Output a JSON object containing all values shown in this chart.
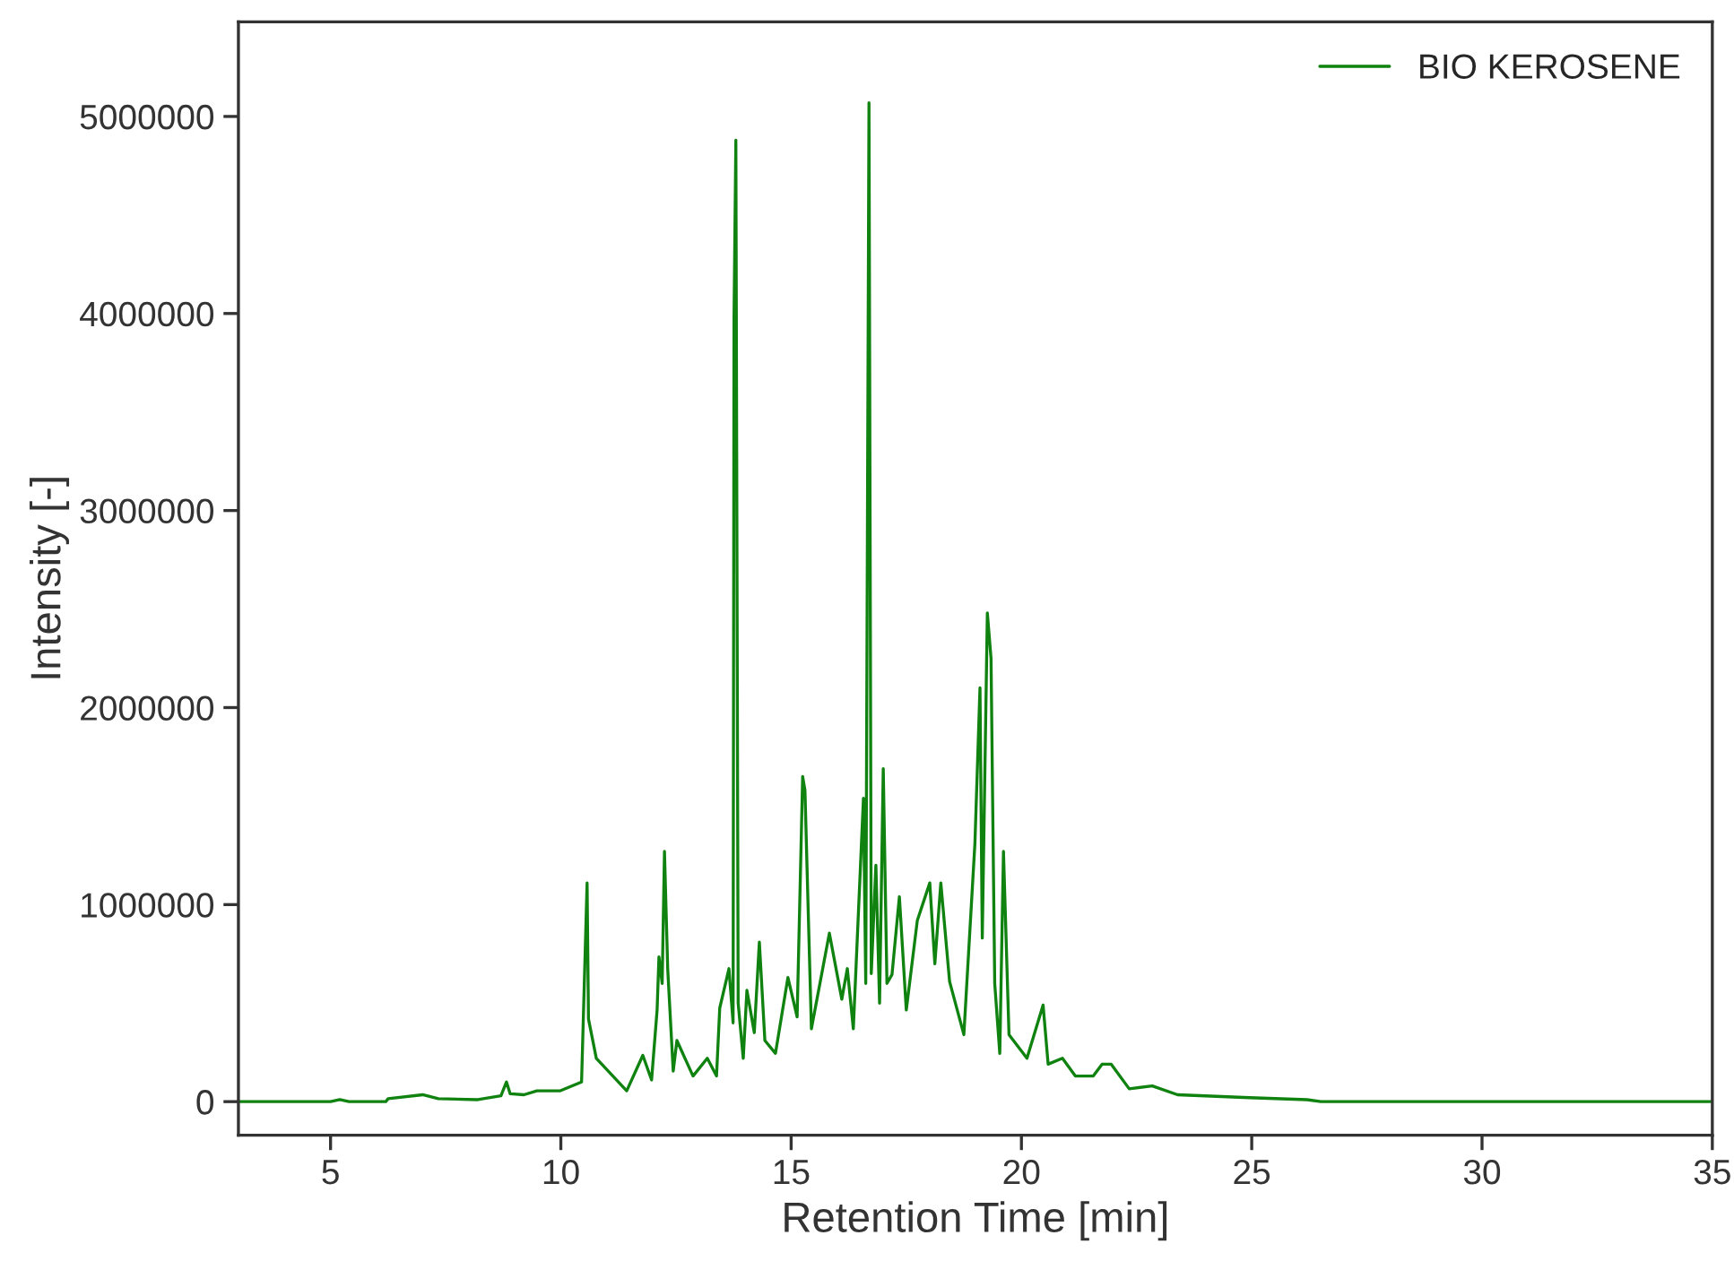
{
  "chart_data": {
    "type": "line",
    "xlabel": "Retention Time [min]",
    "ylabel": "Intensity [-]",
    "xlim": [
      3,
      35
    ],
    "ylim": [
      -170000,
      5480000
    ],
    "xticks": [
      5,
      10,
      15,
      20,
      25,
      30,
      35
    ],
    "yticks": [
      0,
      1000000,
      2000000,
      3000000,
      4000000,
      5000000
    ],
    "grid": false,
    "legend": "top right",
    "marker": "none",
    "line_style": "solid",
    "x": [
      3.0,
      5.0,
      5.2,
      5.4,
      6.2,
      6.25,
      7.0,
      7.34,
      8.2,
      8.7,
      8.82,
      8.9,
      9.2,
      9.48,
      9.99,
      10.45,
      10.57,
      10.6,
      10.77,
      11.43,
      11.78,
      11.97,
      12.09,
      12.13,
      12.2,
      12.25,
      12.32,
      12.44,
      12.52,
      12.87,
      13.18,
      13.38,
      13.45,
      13.65,
      13.74,
      13.76,
      13.8,
      13.85,
      13.96,
      14.04,
      14.2,
      14.31,
      14.43,
      14.66,
      14.93,
      15.13,
      15.25,
      15.3,
      15.44,
      15.83,
      16.1,
      16.22,
      16.35,
      16.57,
      16.62,
      16.69,
      16.74,
      16.84,
      16.92,
      17.0,
      17.08,
      17.19,
      17.35,
      17.5,
      17.74,
      18.01,
      18.12,
      18.25,
      18.44,
      18.75,
      18.99,
      19.1,
      19.15,
      19.26,
      19.34,
      19.42,
      19.53,
      19.61,
      19.73,
      20.12,
      20.47,
      20.58,
      20.89,
      21.17,
      21.56,
      21.75,
      21.95,
      22.34,
      22.84,
      23.39,
      24.95,
      26.2,
      26.5,
      35.0
    ],
    "series": [
      {
        "name": "BIO KEROSENE",
        "color": "#0f820f",
        "values": [
          0,
          0,
          10000,
          0,
          0,
          15000,
          35000,
          15000,
          10000,
          30000,
          100000,
          40000,
          35000,
          55000,
          55000,
          100000,
          1110000,
          420000,
          220000,
          55000,
          235000,
          110000,
          465000,
          735000,
          600000,
          1270000,
          675000,
          155000,
          310000,
          130000,
          220000,
          130000,
          475000,
          675000,
          400000,
          3980000,
          4880000,
          500000,
          220000,
          565000,
          350000,
          810000,
          310000,
          245000,
          630000,
          430000,
          1650000,
          1580000,
          370000,
          855000,
          520000,
          675000,
          370000,
          1540000,
          600000,
          5070000,
          650000,
          1200000,
          500000,
          1690000,
          600000,
          645000,
          1040000,
          465000,
          920000,
          1110000,
          700000,
          1110000,
          610000,
          340000,
          1310000,
          2100000,
          830000,
          2480000,
          2250000,
          600000,
          245000,
          1270000,
          340000,
          220000,
          490000,
          190000,
          220000,
          130000,
          130000,
          190000,
          190000,
          65000,
          80000,
          35000,
          20000,
          10000,
          0,
          0
        ]
      }
    ]
  }
}
